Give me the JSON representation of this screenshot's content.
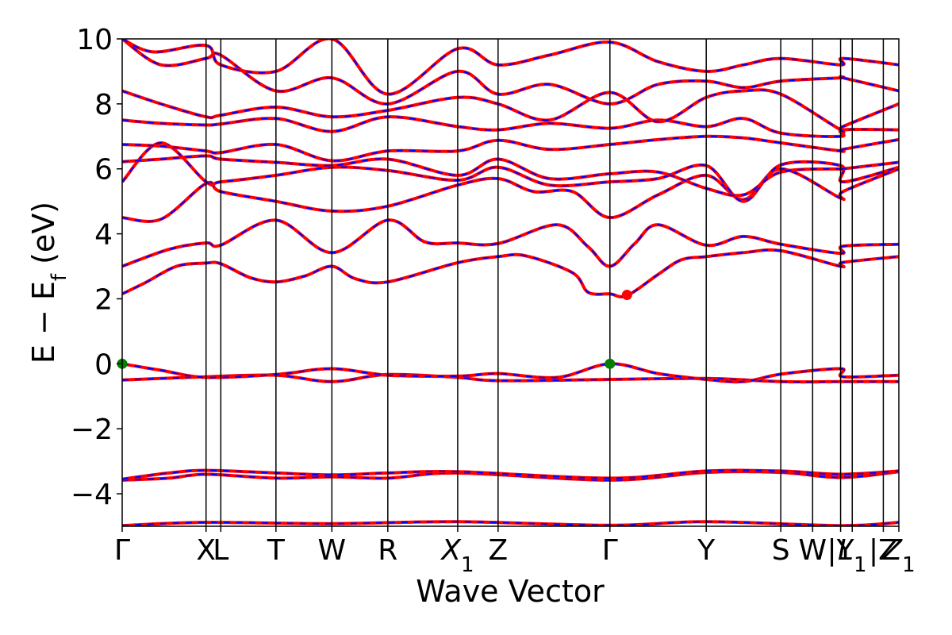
{
  "chart_data": {
    "type": "line",
    "xlabel": "Wave Vector",
    "ylabel": "E − E_f (eV)",
    "ylabel_parts": {
      "main": "E − E",
      "sub": "f",
      "unit": " (eV)"
    },
    "ylim": [
      -5,
      10
    ],
    "y_ticks": [
      -4,
      -2,
      0,
      2,
      4,
      6,
      8,
      10
    ],
    "y_tick_labels": [
      "−4",
      "−2",
      "0",
      "2",
      "4",
      "6",
      "8",
      "10"
    ],
    "xlim": [
      0,
      1
    ],
    "grid": false,
    "kpoints": [
      {
        "label": "Γ",
        "sub": "",
        "x": 0.0
      },
      {
        "label": "X",
        "sub": "",
        "x": 0.108
      },
      {
        "label": "L",
        "sub": "",
        "x": 0.127
      },
      {
        "label": "T",
        "sub": "",
        "x": 0.198
      },
      {
        "label": "W",
        "sub": "",
        "x": 0.27
      },
      {
        "label": "R",
        "sub": "",
        "x": 0.342
      },
      {
        "label": "X",
        "sub": "1",
        "x": 0.432
      },
      {
        "label": "Z",
        "sub": "",
        "x": 0.484
      },
      {
        "label": "Γ",
        "sub": "",
        "x": 0.628
      },
      {
        "label": "Y",
        "sub": "",
        "x": 0.752
      },
      {
        "label": "S",
        "sub": "",
        "x": 0.848
      },
      {
        "label": "W",
        "sub": "",
        "x": 0.889
      },
      {
        "label": "|Y",
        "sub": "",
        "x": 0.925
      },
      {
        "label": "L",
        "sub": "1",
        "x": 0.94
      },
      {
        "label": "|Z",
        "sub": "",
        "x": 0.98
      },
      {
        "label": "Z",
        "sub": "1",
        "x": 1.0
      }
    ],
    "series_styles": {
      "outer": {
        "color": "#ff0000",
        "width": 4
      },
      "inner": {
        "color": "#0000ff",
        "width": 2,
        "dash": "8,8"
      }
    },
    "bands": [
      [
        [
          0,
          -4.98
        ],
        [
          0.108,
          -4.88
        ],
        [
          0.27,
          -4.92
        ],
        [
          0.432,
          -4.86
        ],
        [
          0.628,
          -4.97
        ],
        [
          0.752,
          -4.86
        ],
        [
          0.925,
          -4.98
        ],
        [
          1,
          -4.88
        ]
      ],
      [
        [
          0,
          -3.58
        ],
        [
          0.06,
          -3.52
        ],
        [
          0.108,
          -3.4
        ],
        [
          0.198,
          -3.52
        ],
        [
          0.27,
          -3.48
        ],
        [
          0.342,
          -3.52
        ],
        [
          0.432,
          -3.36
        ],
        [
          0.628,
          -3.58
        ],
        [
          0.752,
          -3.34
        ],
        [
          0.848,
          -3.34
        ],
        [
          0.925,
          -3.5
        ],
        [
          1,
          -3.32
        ]
      ],
      [
        [
          0,
          -3.55
        ],
        [
          0.06,
          -3.36
        ],
        [
          0.108,
          -3.28
        ],
        [
          0.198,
          -3.36
        ],
        [
          0.27,
          -3.42
        ],
        [
          0.342,
          -3.36
        ],
        [
          0.432,
          -3.32
        ],
        [
          0.628,
          -3.52
        ],
        [
          0.752,
          -3.3
        ],
        [
          0.848,
          -3.3
        ],
        [
          0.925,
          -3.4
        ],
        [
          1,
          -3.3
        ]
      ],
      [
        [
          0,
          -0.5
        ],
        [
          0.05,
          -0.45
        ],
        [
          0.108,
          -0.4
        ],
        [
          0.198,
          -0.35
        ],
        [
          0.27,
          -0.55
        ],
        [
          0.342,
          -0.33
        ],
        [
          0.432,
          -0.42
        ],
        [
          0.484,
          -0.52
        ],
        [
          0.628,
          -0.48
        ],
        [
          0.752,
          -0.45
        ],
        [
          0.848,
          -0.55
        ],
        [
          0.925,
          -0.55
        ],
        [
          1,
          -0.55
        ]
      ],
      [
        [
          0,
          0.0
        ],
        [
          0.05,
          -0.2
        ],
        [
          0.108,
          -0.42
        ],
        [
          0.198,
          -0.33
        ],
        [
          0.27,
          -0.15
        ],
        [
          0.342,
          -0.35
        ],
        [
          0.432,
          -0.38
        ],
        [
          0.484,
          -0.3
        ],
        [
          0.56,
          -0.42
        ],
        [
          0.628,
          0.0
        ],
        [
          0.69,
          -0.3
        ],
        [
          0.752,
          -0.48
        ],
        [
          0.8,
          -0.55
        ],
        [
          0.848,
          -0.32
        ],
        [
          0.925,
          -0.15
        ],
        [
          0.928,
          -0.4
        ],
        [
          1,
          -0.35
        ]
      ],
      [
        [
          0,
          2.15
        ],
        [
          0.03,
          2.5
        ],
        [
          0.07,
          3.0
        ],
        [
          0.108,
          3.1
        ],
        [
          0.127,
          3.08
        ],
        [
          0.165,
          2.65
        ],
        [
          0.198,
          2.52
        ],
        [
          0.235,
          2.7
        ],
        [
          0.27,
          3.0
        ],
        [
          0.3,
          2.62
        ],
        [
          0.342,
          2.52
        ],
        [
          0.43,
          3.1
        ],
        [
          0.484,
          3.3
        ],
        [
          0.52,
          3.32
        ],
        [
          0.58,
          2.8
        ],
        [
          0.6,
          2.2
        ],
        [
          0.628,
          2.15
        ],
        [
          0.65,
          2.1
        ],
        [
          0.69,
          2.75
        ],
        [
          0.72,
          3.2
        ],
        [
          0.752,
          3.3
        ],
        [
          0.8,
          3.42
        ],
        [
          0.848,
          3.48
        ],
        [
          0.925,
          3.0
        ],
        [
          0.928,
          3.12
        ],
        [
          1,
          3.3
        ]
      ],
      [
        [
          0,
          3.0
        ],
        [
          0.06,
          3.52
        ],
        [
          0.108,
          3.72
        ],
        [
          0.127,
          3.65
        ],
        [
          0.198,
          4.42
        ],
        [
          0.27,
          3.42
        ],
        [
          0.342,
          4.42
        ],
        [
          0.39,
          3.75
        ],
        [
          0.432,
          3.72
        ],
        [
          0.484,
          3.7
        ],
        [
          0.56,
          4.28
        ],
        [
          0.6,
          3.6
        ],
        [
          0.628,
          3.0
        ],
        [
          0.66,
          3.7
        ],
        [
          0.69,
          4.28
        ],
        [
          0.752,
          3.65
        ],
        [
          0.8,
          3.92
        ],
        [
          0.848,
          3.68
        ],
        [
          0.925,
          3.4
        ],
        [
          0.928,
          3.62
        ],
        [
          1,
          3.68
        ]
      ],
      [
        [
          0,
          4.5
        ],
        [
          0.05,
          4.45
        ],
        [
          0.108,
          5.55
        ],
        [
          0.127,
          5.3
        ],
        [
          0.198,
          5.0
        ],
        [
          0.27,
          4.7
        ],
        [
          0.342,
          4.85
        ],
        [
          0.432,
          5.5
        ],
        [
          0.484,
          5.7
        ],
        [
          0.53,
          5.3
        ],
        [
          0.58,
          5.3
        ],
        [
          0.628,
          4.5
        ],
        [
          0.69,
          5.2
        ],
        [
          0.752,
          5.8
        ],
        [
          0.8,
          5.05
        ],
        [
          0.848,
          6.0
        ],
        [
          0.925,
          5.1
        ],
        [
          0.928,
          5.3
        ],
        [
          1,
          6.0
        ]
      ],
      [
        [
          0,
          5.6
        ],
        [
          0.05,
          6.8
        ],
        [
          0.108,
          5.6
        ],
        [
          0.127,
          5.6
        ],
        [
          0.198,
          5.8
        ],
        [
          0.27,
          6.05
        ],
        [
          0.342,
          5.95
        ],
        [
          0.432,
          5.65
        ],
        [
          0.484,
          6.05
        ],
        [
          0.55,
          5.5
        ],
        [
          0.628,
          5.6
        ],
        [
          0.69,
          5.7
        ],
        [
          0.752,
          6.1
        ],
        [
          0.8,
          5.0
        ],
        [
          0.848,
          6.12
        ],
        [
          0.925,
          6.1
        ],
        [
          0.928,
          5.6
        ],
        [
          1,
          6.05
        ]
      ],
      [
        [
          0,
          6.22
        ],
        [
          0.05,
          6.3
        ],
        [
          0.108,
          6.4
        ],
        [
          0.127,
          6.3
        ],
        [
          0.198,
          6.2
        ],
        [
          0.27,
          6.1
        ],
        [
          0.342,
          6.3
        ],
        [
          0.432,
          5.8
        ],
        [
          0.484,
          6.3
        ],
        [
          0.55,
          5.7
        ],
        [
          0.628,
          5.85
        ],
        [
          0.69,
          5.9
        ],
        [
          0.752,
          5.4
        ],
        [
          0.8,
          5.2
        ],
        [
          0.848,
          5.9
        ],
        [
          0.925,
          6.0
        ],
        [
          0.928,
          6.0
        ],
        [
          1,
          6.2
        ]
      ],
      [
        [
          0,
          6.75
        ],
        [
          0.05,
          6.7
        ],
        [
          0.108,
          6.55
        ],
        [
          0.127,
          6.5
        ],
        [
          0.198,
          6.75
        ],
        [
          0.27,
          6.25
        ],
        [
          0.342,
          6.55
        ],
        [
          0.432,
          6.55
        ],
        [
          0.484,
          6.88
        ],
        [
          0.55,
          6.6
        ],
        [
          0.628,
          6.75
        ],
        [
          0.69,
          6.9
        ],
        [
          0.752,
          7.0
        ],
        [
          0.8,
          6.95
        ],
        [
          0.848,
          6.8
        ],
        [
          0.925,
          6.55
        ],
        [
          0.928,
          6.6
        ],
        [
          1,
          6.9
        ]
      ],
      [
        [
          0,
          7.5
        ],
        [
          0.05,
          7.4
        ],
        [
          0.108,
          7.35
        ],
        [
          0.127,
          7.38
        ],
        [
          0.198,
          7.55
        ],
        [
          0.27,
          7.15
        ],
        [
          0.342,
          7.6
        ],
        [
          0.432,
          7.3
        ],
        [
          0.484,
          7.2
        ],
        [
          0.55,
          7.4
        ],
        [
          0.628,
          7.25
        ],
        [
          0.69,
          7.5
        ],
        [
          0.752,
          7.3
        ],
        [
          0.8,
          7.55
        ],
        [
          0.848,
          7.1
        ],
        [
          0.925,
          7.0
        ],
        [
          0.928,
          7.2
        ],
        [
          1,
          7.2
        ]
      ],
      [
        [
          0,
          8.4
        ],
        [
          0.05,
          8.0
        ],
        [
          0.108,
          7.6
        ],
        [
          0.127,
          7.65
        ],
        [
          0.198,
          7.9
        ],
        [
          0.27,
          7.6
        ],
        [
          0.342,
          7.8
        ],
        [
          0.432,
          8.2
        ],
        [
          0.484,
          8.0
        ],
        [
          0.55,
          7.5
        ],
        [
          0.628,
          8.35
        ],
        [
          0.69,
          7.45
        ],
        [
          0.752,
          8.2
        ],
        [
          0.8,
          8.4
        ],
        [
          0.848,
          8.3
        ],
        [
          0.925,
          7.2
        ],
        [
          0.928,
          7.3
        ],
        [
          1,
          8.0
        ]
      ],
      [
        [
          0,
          10.0
        ],
        [
          0.05,
          9.2
        ],
        [
          0.108,
          9.4
        ],
        [
          0.127,
          9.5
        ],
        [
          0.198,
          8.4
        ],
        [
          0.27,
          8.8
        ],
        [
          0.342,
          8.0
        ],
        [
          0.432,
          9.0
        ],
        [
          0.484,
          8.3
        ],
        [
          0.55,
          8.6
        ],
        [
          0.628,
          8.0
        ],
        [
          0.69,
          8.6
        ],
        [
          0.752,
          8.7
        ],
        [
          0.8,
          8.5
        ],
        [
          0.848,
          8.7
        ],
        [
          0.925,
          8.8
        ],
        [
          0.928,
          8.8
        ],
        [
          1,
          8.4
        ]
      ],
      [
        [
          0,
          10.0
        ],
        [
          0.04,
          9.6
        ],
        [
          0.108,
          9.8
        ],
        [
          0.127,
          9.2
        ],
        [
          0.198,
          9.0
        ],
        [
          0.27,
          10.0
        ],
        [
          0.342,
          8.3
        ],
        [
          0.432,
          9.7
        ],
        [
          0.484,
          9.2
        ],
        [
          0.55,
          9.5
        ],
        [
          0.628,
          9.9
        ],
        [
          0.69,
          9.3
        ],
        [
          0.752,
          9.0
        ],
        [
          0.8,
          9.2
        ],
        [
          0.848,
          9.4
        ],
        [
          0.925,
          9.2
        ],
        [
          0.928,
          9.4
        ],
        [
          1,
          9.2
        ]
      ]
    ],
    "markers": [
      {
        "x": 0.0,
        "y": 0.0,
        "color": "#008000"
      },
      {
        "x": 0.628,
        "y": 0.0,
        "color": "#008000"
      },
      {
        "x": 0.65,
        "y": 2.12,
        "color": "#ff0000"
      }
    ]
  }
}
